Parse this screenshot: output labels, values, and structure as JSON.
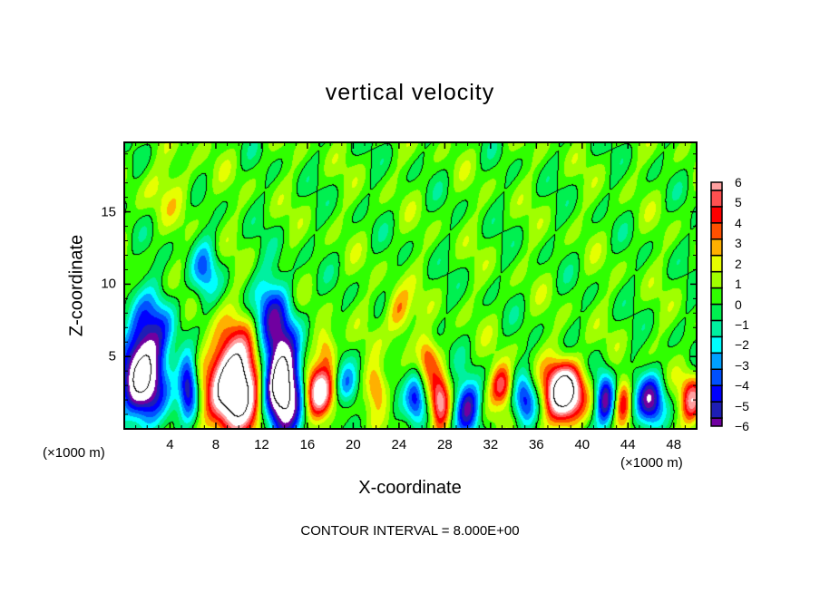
{
  "chart_data": {
    "type": "heatmap",
    "title": "vertical velocity",
    "xlabel": "X-coordinate",
    "ylabel": "Z-coordinate",
    "x_unit": "(×1000 m)",
    "y_unit": "(×1000 m)",
    "footer": "CONTOUR INTERVAL = 8.000E+00",
    "contour_interval": 8,
    "xlim": [
      0,
      50
    ],
    "ylim": [
      0,
      19.8
    ],
    "xticks": [
      4,
      8,
      12,
      16,
      20,
      24,
      28,
      32,
      36,
      40,
      44,
      48
    ],
    "yticks": [
      5,
      10,
      15
    ],
    "colorbar": {
      "ticks": [
        6,
        5,
        4,
        3,
        2,
        1,
        0,
        -1,
        -2,
        -3,
        -4,
        -5,
        -6
      ],
      "range": [
        -6,
        6
      ],
      "colors": [
        "#7000a0",
        "#1e1eb4",
        "#0000ff",
        "#0050ff",
        "#00a0ff",
        "#00ffff",
        "#00f0a0",
        "#00f050",
        "#30ff00",
        "#a0ff00",
        "#e6ff00",
        "#ffb000",
        "#ff5000",
        "#ff0000",
        "#ff5050",
        "#ffa0a0"
      ],
      "out_of_range_color": "#ffffff"
    },
    "background_value": 0.4,
    "features": [
      {
        "x": 1.5,
        "z": 3.5,
        "amp": -9,
        "sx": 1.3,
        "sz": 2.2
      },
      {
        "x": 2.5,
        "z": 7,
        "amp": -3,
        "sx": 1.5,
        "sz": 2
      },
      {
        "x": 5.6,
        "z": 3,
        "amp": -6.5,
        "sx": 0.6,
        "sz": 1.5
      },
      {
        "x": 7,
        "z": 11,
        "amp": -3,
        "sx": 0.8,
        "sz": 1.5
      },
      {
        "x": 9.6,
        "z": 3,
        "amp": 11,
        "sx": 1.5,
        "sz": 2.4
      },
      {
        "x": 13.8,
        "z": 3,
        "amp": -10,
        "sx": 1.2,
        "sz": 2.6
      },
      {
        "x": 12.8,
        "z": 8,
        "amp": -3.5,
        "sx": 1.2,
        "sz": 2
      },
      {
        "x": 17,
        "z": 2.5,
        "amp": 6.5,
        "sx": 0.9,
        "sz": 1.3
      },
      {
        "x": 17.7,
        "z": 5.5,
        "amp": 3,
        "sx": 0.6,
        "sz": 1
      },
      {
        "x": 19.5,
        "z": 3,
        "amp": -3,
        "sx": 0.7,
        "sz": 1
      },
      {
        "x": 22,
        "z": 3,
        "amp": 3,
        "sx": 0.6,
        "sz": 1
      },
      {
        "x": 24,
        "z": 8,
        "amp": 3,
        "sx": 0.8,
        "sz": 1.2
      },
      {
        "x": 25.5,
        "z": 2,
        "amp": -4,
        "sx": 0.6,
        "sz": 1.2
      },
      {
        "x": 26.5,
        "z": 5,
        "amp": 3,
        "sx": 0.6,
        "sz": 1
      },
      {
        "x": 27.6,
        "z": 1.8,
        "amp": 5.5,
        "sx": 0.6,
        "sz": 1.3
      },
      {
        "x": 30,
        "z": 1.5,
        "amp": -5.5,
        "sx": 0.8,
        "sz": 1.3
      },
      {
        "x": 33,
        "z": 3,
        "amp": 4.5,
        "sx": 0.7,
        "sz": 1
      },
      {
        "x": 35,
        "z": 2,
        "amp": -4,
        "sx": 0.7,
        "sz": 1.2
      },
      {
        "x": 38.5,
        "z": 2.5,
        "amp": 9.5,
        "sx": 1.2,
        "sz": 1.4
      },
      {
        "x": 42,
        "z": 2,
        "amp": -6.5,
        "sx": 0.6,
        "sz": 1.3
      },
      {
        "x": 43.6,
        "z": 2,
        "amp": 3.5,
        "sx": 0.5,
        "sz": 1.2
      },
      {
        "x": 46,
        "z": 2,
        "amp": -5.5,
        "sx": 0.9,
        "sz": 1.3
      },
      {
        "x": 49.6,
        "z": 2,
        "amp": 5,
        "sx": 0.7,
        "sz": 1.2
      },
      {
        "x": 4,
        "z": 16.5,
        "amp": 1,
        "sx": 2,
        "sz": 1.5
      }
    ]
  }
}
